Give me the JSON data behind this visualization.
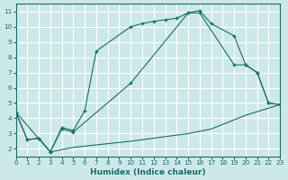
{
  "xlabel": "Humidex (Indice chaleur)",
  "bg_color": "#cde8e8",
  "grid_white_color": "#ffffff",
  "grid_pink_color": "#d4a8a8",
  "line_color": "#1a6b6b",
  "curve1_x": [
    0,
    1,
    2,
    3,
    4,
    5,
    6,
    7,
    10,
    11,
    12,
    13,
    14,
    15,
    16,
    17,
    19,
    20,
    21,
    22,
    23
  ],
  "curve1_y": [
    4.4,
    2.6,
    2.7,
    1.8,
    3.4,
    3.2,
    4.5,
    8.4,
    10.0,
    10.2,
    10.35,
    10.45,
    10.55,
    10.9,
    11.05,
    10.2,
    9.4,
    7.5,
    7.0,
    5.0,
    4.9
  ],
  "curve2_x": [
    0,
    1,
    2,
    3,
    4,
    5,
    10,
    15,
    16,
    19,
    20,
    21,
    22,
    23
  ],
  "curve2_y": [
    4.4,
    2.6,
    2.7,
    1.8,
    3.3,
    3.1,
    6.3,
    10.9,
    10.9,
    7.5,
    7.5,
    7.0,
    5.0,
    4.9
  ],
  "curve3_x": [
    0,
    3,
    5,
    10,
    15,
    17,
    20,
    23
  ],
  "curve3_y": [
    4.4,
    1.8,
    2.1,
    2.5,
    3.0,
    3.3,
    4.2,
    4.9
  ],
  "xlim": [
    0,
    23
  ],
  "ylim": [
    1.5,
    11.5
  ],
  "xticks": [
    0,
    1,
    2,
    3,
    4,
    5,
    6,
    7,
    8,
    9,
    10,
    11,
    12,
    13,
    14,
    15,
    16,
    17,
    18,
    19,
    20,
    21,
    22,
    23
  ],
  "yticks": [
    2,
    3,
    4,
    5,
    6,
    7,
    8,
    9,
    10,
    11
  ],
  "xlabel_fontsize": 6.5,
  "tick_fontsize": 5.2
}
